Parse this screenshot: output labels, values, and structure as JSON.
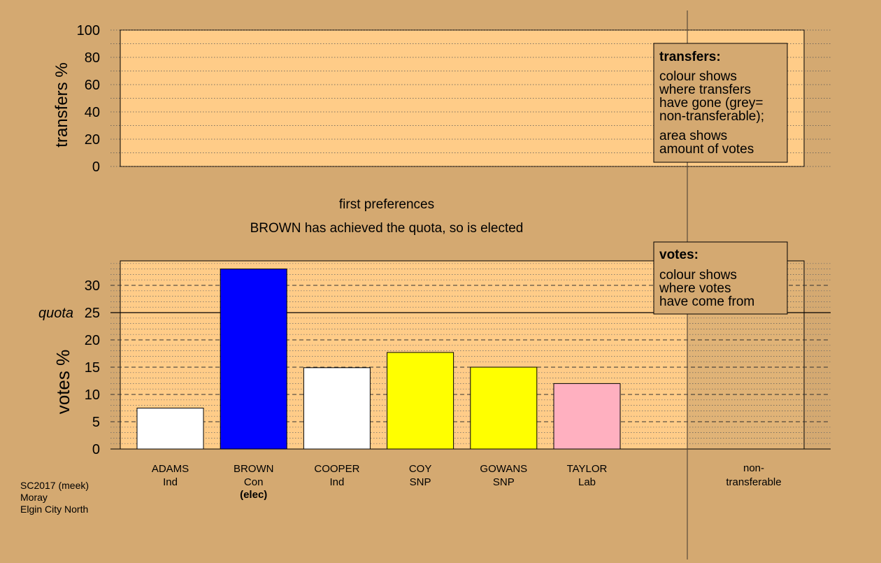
{
  "colors": {
    "background": "#d4a971",
    "plot_fill": "#ffcc88",
    "legend_fill": "#d4a971",
    "vertical_divider": "#5a4a3a"
  },
  "transfers_panel": {
    "ylabel": "transfers %",
    "ylim": [
      0,
      100
    ],
    "yticks": [
      "0",
      "20",
      "40",
      "60",
      "80",
      "100"
    ],
    "legend": {
      "title": "transfers:",
      "lines": [
        "colour shows",
        "where transfers",
        "have gone (grey=",
        "non-transferable);"
      ],
      "lines2": [
        "area shows",
        "amount of votes"
      ]
    }
  },
  "stage_text": {
    "round_label": "first preferences",
    "status": "BROWN has achieved the quota, so is elected"
  },
  "votes_panel": {
    "ylabel": "votes %",
    "quota_label": "quota",
    "quota_value": 25,
    "legend": {
      "title": "votes:",
      "lines": [
        "colour shows",
        "where votes",
        "have come from"
      ]
    }
  },
  "nontransferable_label": [
    "non-",
    "transferable"
  ],
  "footer": {
    "line1": "SC2017 (meek)",
    "line2": "Moray",
    "line3": "Elgin City North"
  },
  "chart_data": {
    "type": "bar",
    "ylabel": "votes %",
    "ylim": [
      0,
      33
    ],
    "yticks": [
      0,
      5,
      10,
      15,
      20,
      25,
      30
    ],
    "quota": 25,
    "categories": [
      "ADAMS",
      "BROWN",
      "COOPER",
      "COY",
      "GOWANS",
      "TAYLOR"
    ],
    "parties": [
      "Ind",
      "Con",
      "Ind",
      "SNP",
      "SNP",
      "Lab"
    ],
    "notes": [
      "",
      "(elec)",
      "",
      "",
      "",
      ""
    ],
    "values": [
      7.5,
      33.0,
      14.9,
      17.7,
      15.0,
      12.0
    ],
    "colors": [
      "#ffffff",
      "#0000ff",
      "#ffffff",
      "#ffff00",
      "#ffff00",
      "#ffb0c0"
    ]
  }
}
